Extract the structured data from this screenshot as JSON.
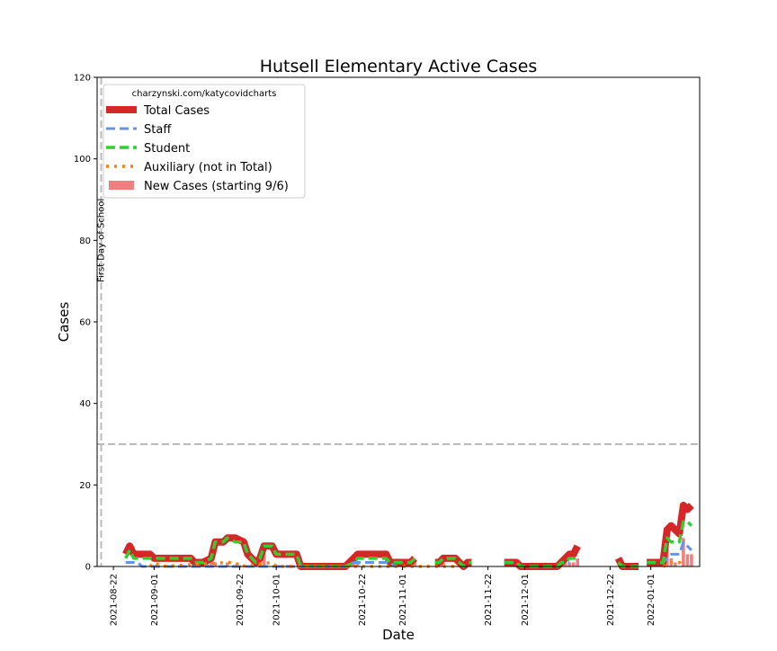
{
  "chart_data": {
    "type": "line",
    "title": "Hutsell Elementary Active Cases",
    "xlabel": "Date",
    "ylabel": "Cases",
    "x_range": [
      "2021-08-18",
      "2022-01-13"
    ],
    "ylim": [
      0,
      120
    ],
    "y_ticks": [
      0,
      20,
      40,
      60,
      80,
      100,
      120
    ],
    "x_ticks": [
      "2021-08-22",
      "2021-09-01",
      "2021-09-22",
      "2021-10-01",
      "2021-10-22",
      "2021-11-01",
      "2021-11-22",
      "2021-12-01",
      "2021-12-22",
      "2022-01-01"
    ],
    "grid": false,
    "legend_position": "top-left",
    "legend_header": "charzynski.com/katycovidcharts",
    "annotations": {
      "first_day_label": "First Day of School",
      "first_day_date": "2021-08-19",
      "threshold_value": 30
    },
    "colors": {
      "total": "#d62728",
      "staff": "#6495ed",
      "student": "#32cd32",
      "auxiliary": "#ff7f0e",
      "new_cases": "#f08080",
      "reference": "#bbbbbb"
    },
    "series": [
      {
        "name": "Total Cases",
        "style": "solid",
        "segments": [
          [
            [
              "2021-08-25",
              3
            ],
            [
              "2021-08-26",
              5
            ],
            [
              "2021-08-27",
              3
            ],
            [
              "2021-08-28",
              3
            ],
            [
              "2021-08-31",
              3
            ],
            [
              "2021-09-01",
              2
            ],
            [
              "2021-09-10",
              2
            ],
            [
              "2021-09-11",
              1
            ],
            [
              "2021-09-13",
              1
            ],
            [
              "2021-09-15",
              2
            ],
            [
              "2021-09-16",
              6
            ],
            [
              "2021-09-18",
              6
            ],
            [
              "2021-09-19",
              7
            ],
            [
              "2021-09-21",
              7
            ],
            [
              "2021-09-23",
              6
            ],
            [
              "2021-09-24",
              3
            ],
            [
              "2021-09-26",
              1
            ],
            [
              "2021-09-27",
              2
            ],
            [
              "2021-09-28",
              5
            ],
            [
              "2021-09-30",
              5
            ],
            [
              "2021-10-01",
              3
            ],
            [
              "2021-10-06",
              3
            ],
            [
              "2021-10-07",
              0
            ],
            [
              "2021-10-18",
              0
            ],
            [
              "2021-10-20",
              2
            ],
            [
              "2021-10-21",
              3
            ],
            [
              "2021-10-28",
              3
            ],
            [
              "2021-10-29",
              1
            ],
            [
              "2021-11-03",
              1
            ],
            [
              "2021-11-04",
              2
            ]
          ],
          [
            [
              "2021-11-09",
              1
            ],
            [
              "2021-11-10",
              1
            ],
            [
              "2021-11-11",
              2
            ],
            [
              "2021-11-14",
              2
            ],
            [
              "2021-11-15",
              1
            ],
            [
              "2021-11-16",
              0
            ],
            [
              "2021-11-17",
              1
            ],
            [
              "2021-11-18",
              1
            ]
          ],
          [
            [
              "2021-11-26",
              1
            ],
            [
              "2021-11-29",
              1
            ],
            [
              "2021-11-30",
              0
            ],
            [
              "2021-12-03",
              0
            ],
            [
              "2021-12-04",
              0
            ],
            [
              "2021-12-05",
              0
            ],
            [
              "2021-12-09",
              0
            ],
            [
              "2021-12-10",
              1
            ],
            [
              "2021-12-11",
              2
            ],
            [
              "2021-12-12",
              3
            ],
            [
              "2021-12-13",
              3
            ],
            [
              "2021-12-14",
              5
            ]
          ],
          [
            [
              "2021-12-24",
              2
            ],
            [
              "2021-12-25",
              0
            ],
            [
              "2021-12-29",
              0
            ]
          ],
          [
            [
              "2021-12-31",
              1
            ],
            [
              "2022-01-04",
              1
            ],
            [
              "2022-01-05",
              9
            ],
            [
              "2022-01-06",
              10
            ],
            [
              "2022-01-08",
              8
            ],
            [
              "2022-01-09",
              15
            ],
            [
              "2022-01-10",
              14
            ],
            [
              "2022-01-11",
              15
            ]
          ]
        ]
      },
      {
        "name": "Staff",
        "style": "dashed",
        "segments": [
          [
            [
              "2021-08-25",
              1
            ],
            [
              "2021-08-28",
              1
            ],
            [
              "2021-08-29",
              0
            ],
            [
              "2021-10-19",
              0
            ],
            [
              "2021-10-20",
              1
            ],
            [
              "2021-10-24",
              1
            ],
            [
              "2021-10-25",
              1
            ],
            [
              "2021-10-29",
              1
            ],
            [
              "2021-10-30",
              0
            ]
          ],
          [
            [
              "2021-11-26",
              1
            ],
            [
              "2021-11-29",
              1
            ],
            [
              "2021-11-30",
              0
            ],
            [
              "2021-12-09",
              0
            ],
            [
              "2021-12-10",
              1
            ],
            [
              "2021-12-12",
              1
            ]
          ],
          [
            [
              "2021-12-31",
              1
            ],
            [
              "2022-01-04",
              1
            ],
            [
              "2022-01-05",
              2
            ],
            [
              "2022-01-06",
              3
            ],
            [
              "2022-01-08",
              3
            ],
            [
              "2022-01-09",
              6
            ],
            [
              "2022-01-10",
              5
            ],
            [
              "2022-01-11",
              4
            ]
          ]
        ]
      },
      {
        "name": "Student",
        "style": "dashed",
        "segments": [
          [
            [
              "2021-08-25",
              2
            ],
            [
              "2021-08-26",
              4
            ],
            [
              "2021-08-27",
              2
            ],
            [
              "2021-08-28",
              2
            ],
            [
              "2021-08-31",
              2
            ],
            [
              "2021-09-01",
              2
            ],
            [
              "2021-09-10",
              2
            ],
            [
              "2021-09-11",
              1
            ],
            [
              "2021-09-13",
              1
            ],
            [
              "2021-09-15",
              2
            ],
            [
              "2021-09-16",
              6
            ],
            [
              "2021-09-18",
              6
            ],
            [
              "2021-09-19",
              7
            ],
            [
              "2021-09-21",
              6
            ],
            [
              "2021-09-23",
              6
            ],
            [
              "2021-09-24",
              3
            ],
            [
              "2021-09-26",
              1
            ],
            [
              "2021-09-27",
              2
            ],
            [
              "2021-09-28",
              5
            ],
            [
              "2021-09-30",
              5
            ],
            [
              "2021-10-01",
              3
            ],
            [
              "2021-10-06",
              3
            ],
            [
              "2021-10-07",
              0
            ],
            [
              "2021-10-18",
              0
            ],
            [
              "2021-10-20",
              1
            ],
            [
              "2021-10-21",
              2
            ],
            [
              "2021-10-28",
              2
            ],
            [
              "2021-10-29",
              1
            ],
            [
              "2021-11-03",
              1
            ],
            [
              "2021-11-04",
              2
            ]
          ],
          [
            [
              "2021-11-09",
              1
            ],
            [
              "2021-11-10",
              1
            ],
            [
              "2021-11-11",
              2
            ],
            [
              "2021-11-14",
              2
            ],
            [
              "2021-11-15",
              1
            ],
            [
              "2021-11-16",
              0
            ],
            [
              "2021-11-17",
              1
            ],
            [
              "2021-11-18",
              1
            ]
          ],
          [
            [
              "2021-11-26",
              1
            ],
            [
              "2021-11-29",
              1
            ],
            [
              "2021-11-30",
              0
            ],
            [
              "2021-12-09",
              0
            ],
            [
              "2021-12-10",
              1
            ],
            [
              "2021-12-11",
              1
            ],
            [
              "2021-12-12",
              2
            ],
            [
              "2021-12-14",
              2
            ]
          ],
          [
            [
              "2021-12-24",
              1
            ],
            [
              "2021-12-25",
              0
            ],
            [
              "2021-12-29",
              0
            ]
          ],
          [
            [
              "2021-12-31",
              1
            ],
            [
              "2022-01-04",
              1
            ],
            [
              "2022-01-05",
              7
            ],
            [
              "2022-01-06",
              6
            ],
            [
              "2022-01-08",
              6
            ],
            [
              "2022-01-09",
              11
            ],
            [
              "2022-01-10",
              11
            ],
            [
              "2022-01-11",
              10
            ]
          ]
        ]
      },
      {
        "name": "Auxiliary (not in Total)",
        "style": "dotted",
        "segments": [
          [
            [
              "2021-08-31",
              0
            ],
            [
              "2021-09-01",
              1
            ],
            [
              "2021-09-03",
              0
            ],
            [
              "2021-09-19",
              1
            ],
            [
              "2021-09-21",
              1
            ],
            [
              "2021-09-22",
              0
            ],
            [
              "2021-09-30",
              1
            ],
            [
              "2021-10-01",
              0
            ],
            [
              "2021-10-25",
              0
            ],
            [
              "2021-11-14",
              0
            ]
          ],
          [
            [
              "2022-01-04",
              0
            ],
            [
              "2022-01-06",
              1
            ],
            [
              "2022-01-08",
              1
            ],
            [
              "2022-01-09",
              0
            ]
          ]
        ]
      }
    ],
    "new_cases": {
      "name": "New Cases (starting 9/6)",
      "points": [
        [
          "2021-09-14",
          1
        ],
        [
          "2021-09-15",
          4
        ],
        [
          "2021-09-16",
          1
        ],
        [
          "2021-09-19",
          1
        ],
        [
          "2021-09-27",
          1
        ],
        [
          "2021-09-28",
          3
        ],
        [
          "2021-10-20",
          2
        ],
        [
          "2021-10-21",
          1
        ],
        [
          "2021-11-04",
          1
        ],
        [
          "2021-11-11",
          1
        ],
        [
          "2021-12-10",
          1
        ],
        [
          "2021-12-11",
          1
        ],
        [
          "2021-12-12",
          1
        ],
        [
          "2021-12-13",
          1
        ],
        [
          "2021-12-14",
          2
        ],
        [
          "2022-01-04",
          2
        ],
        [
          "2022-01-05",
          8
        ],
        [
          "2022-01-06",
          2
        ],
        [
          "2022-01-07",
          1
        ],
        [
          "2022-01-09",
          7
        ],
        [
          "2022-01-10",
          3
        ],
        [
          "2022-01-11",
          3
        ]
      ]
    }
  }
}
